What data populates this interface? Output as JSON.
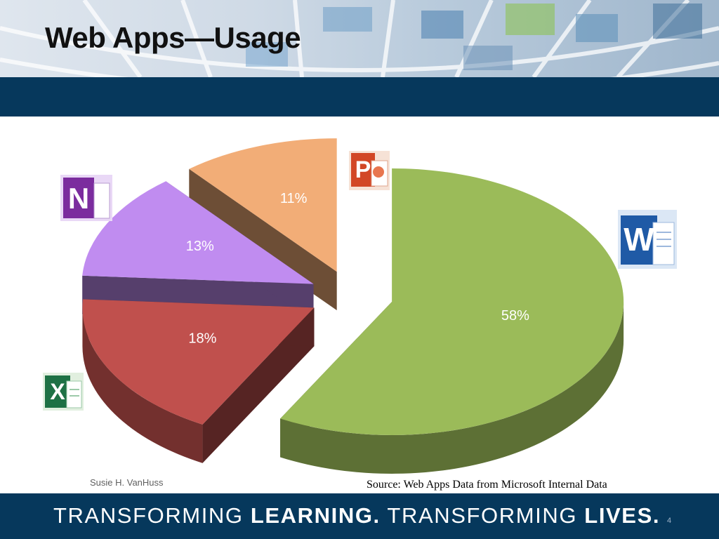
{
  "slide": {
    "title": "Web Apps—Usage",
    "author": "Susie H. VanHuss",
    "source": "Source:  Web Apps Data from Microsoft Internal Data",
    "slide_number": "4"
  },
  "footer": {
    "part1": "TRANSFORMING ",
    "part2": "LEARNING.",
    "part3": " TRANSFORMING ",
    "part4": "LIVES."
  },
  "icons": [
    "onenote-icon",
    "powerpoint-icon",
    "word-icon",
    "excel-icon"
  ],
  "colors": {
    "navy": "#06385c",
    "word": "#9bbb59",
    "excel": "#c0504d",
    "onenote": "#c08cf0",
    "powerpoint": "#f2ad77"
  },
  "chart_data": {
    "type": "pie",
    "style": "3d-exploded",
    "categories": [
      "Word",
      "Excel",
      "OneNote",
      "PowerPoint"
    ],
    "values": [
      58,
      18,
      13,
      11
    ],
    "labels": [
      "58%",
      "18%",
      "13%",
      "11%"
    ]
  }
}
